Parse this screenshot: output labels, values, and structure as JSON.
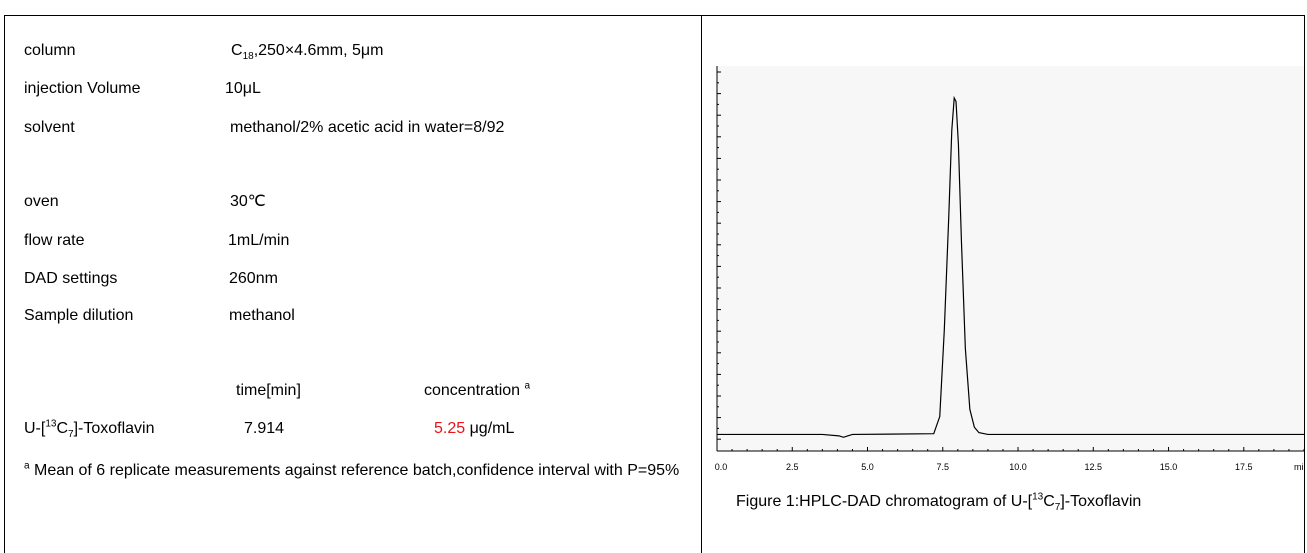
{
  "params": [
    {
      "label": "column",
      "value_parts": [
        "C",
        "18",
        ",250×4.6mm, 5μm"
      ]
    },
    {
      "label": "injection Volume",
      "value": "10μL"
    },
    {
      "label": "solvent",
      "value": "methanol/2% acetic acid in water=8/92"
    },
    {
      "label": "oven",
      "value": "30℃"
    },
    {
      "label": "flow rate",
      "value": "1mL/min"
    },
    {
      "label": "DAD settings",
      "value": "260nm"
    },
    {
      "label": "Sample dilution",
      "value": "methanol"
    }
  ],
  "results": {
    "header_time": "time[min]",
    "header_conc": "concentration",
    "header_conc_sup": "a",
    "compound_prefix": "U-[",
    "compound_sup": "13",
    "compound_mid": "C",
    "compound_sub": "7",
    "compound_suffix": "]-Toxoflavin",
    "time": "7.914",
    "conc_value": "5.25",
    "conc_unit": " μg/mL",
    "conc_color": "#e8141b"
  },
  "footnote": {
    "sup": "a",
    "text": " Mean of 6 replicate measurements against reference batch,confidence interval with P=95%"
  },
  "figure": {
    "caption_prefix": "Figure 1:HPLC-DAD chromatogram of U-[",
    "caption_sup": "13",
    "caption_mid": "C",
    "caption_sub": "7",
    "caption_suffix": "]-Toxoflavin"
  },
  "chart_data": {
    "type": "line",
    "title": "",
    "xlabel": "",
    "ylabel": "",
    "x_unit_label": "min",
    "xlim": [
      0,
      19.5
    ],
    "ylim": [
      0,
      1
    ],
    "x_ticks": [
      "0.0",
      "2.5",
      "5.0",
      "7.5",
      "10.0",
      "12.5",
      "15.0",
      "17.5"
    ],
    "x_tick_values": [
      0,
      2.5,
      5.0,
      7.5,
      10.0,
      12.5,
      15.0,
      17.5
    ],
    "series": [
      {
        "x": [
          0,
          3.5,
          4.05,
          4.2,
          4.35,
          4.5,
          7.2,
          7.4,
          7.55,
          7.7,
          7.8,
          7.88,
          7.94,
          8.02,
          8.12,
          8.25,
          8.4,
          8.55,
          8.7,
          9.0,
          19.5
        ],
        "y": [
          0.01,
          0.01,
          0.006,
          0.002,
          0.006,
          0.01,
          0.012,
          0.06,
          0.3,
          0.62,
          0.86,
          0.95,
          0.94,
          0.82,
          0.55,
          0.25,
          0.08,
          0.03,
          0.015,
          0.01,
          0.01
        ]
      }
    ]
  }
}
